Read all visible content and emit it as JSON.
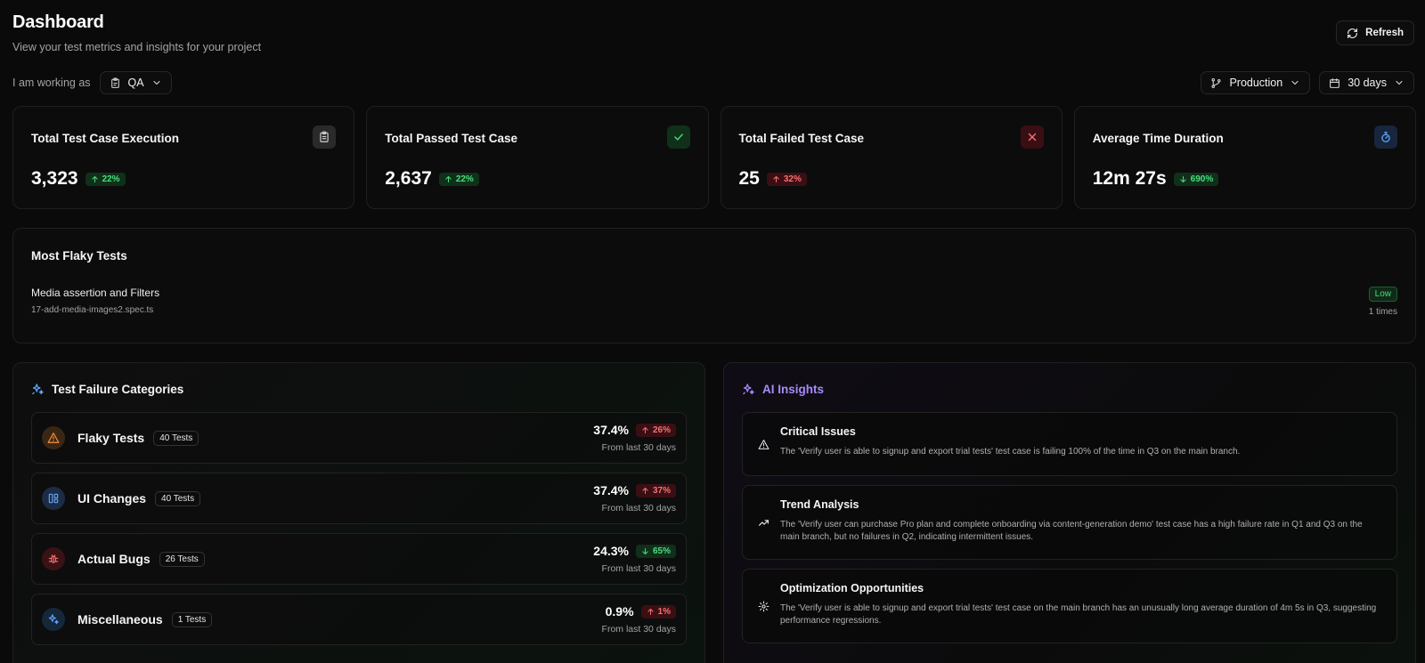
{
  "header": {
    "title": "Dashboard",
    "subtitle": "View your test metrics and insights for your project",
    "refresh_label": "Refresh"
  },
  "role": {
    "label": "I am working as",
    "value": "QA"
  },
  "filters": {
    "environment": "Production",
    "range": "30 days"
  },
  "stats": [
    {
      "title": "Total Test Case Execution",
      "value": "3,323",
      "trend": "22%",
      "direction": "up",
      "tone": "green",
      "icon": "clipboard-icon"
    },
    {
      "title": "Total Passed Test Case",
      "value": "2,637",
      "trend": "22%",
      "direction": "up",
      "tone": "green",
      "icon": "check-icon"
    },
    {
      "title": "Total Failed Test Case",
      "value": "25",
      "trend": "32%",
      "direction": "up",
      "tone": "red",
      "icon": "x-icon"
    },
    {
      "title": "Average Time Duration",
      "value": "12m 27s",
      "trend": "690%",
      "direction": "down",
      "tone": "green",
      "icon": "timer-icon"
    }
  ],
  "flaky": {
    "title": "Most Flaky Tests",
    "items": [
      {
        "name": "Media assertion and Filters",
        "file": "17-add-media-images2.spec.ts",
        "level": "Low",
        "count": "1 times"
      }
    ]
  },
  "failure_categories": {
    "title": "Test Failure Categories",
    "items": [
      {
        "name": "Flaky Tests",
        "count": "40 Tests",
        "pct": "37.4%",
        "trend": "26%",
        "direction": "up",
        "tone": "red",
        "period": "From last 30 days",
        "icon": "warning-icon"
      },
      {
        "name": "UI Changes",
        "count": "40 Tests",
        "pct": "37.4%",
        "trend": "37%",
        "direction": "up",
        "tone": "red",
        "period": "From last 30 days",
        "icon": "layout-icon"
      },
      {
        "name": "Actual Bugs",
        "count": "26 Tests",
        "pct": "24.3%",
        "trend": "65%",
        "direction": "down",
        "tone": "green",
        "period": "From last 30 days",
        "icon": "bug-icon"
      },
      {
        "name": "Miscellaneous",
        "count": "1 Tests",
        "pct": "0.9%",
        "trend": "1%",
        "direction": "up",
        "tone": "red",
        "period": "From last 30 days",
        "icon": "sparkles-icon"
      }
    ]
  },
  "ai_insights": {
    "title": "AI Insights",
    "items": [
      {
        "title": "Critical Issues",
        "text": "The 'Verify user is able to signup and export trial tests' test case is failing 100% of the time in Q3 on the main branch.",
        "icon": "warning-icon"
      },
      {
        "title": "Trend Analysis",
        "text": "The 'Verify user can purchase Pro plan and complete onboarding via content-generation demo' test case has a high failure rate in Q1 and Q3 on the main branch, but no failures in Q2, indicating intermittent issues.",
        "icon": "trending-up-icon"
      },
      {
        "title": "Optimization Opportunities",
        "text": "The 'Verify user is able to signup and export trial tests' test case on the main branch has an unusually long average duration of 4m 5s in Q3, suggesting performance regressions.",
        "icon": "gear-icon"
      }
    ]
  },
  "colors": {
    "background": "#0a0a0a",
    "accent_purple": "#a78bfa",
    "success": "#4ade80",
    "danger": "#f87171",
    "info": "#60a5fa",
    "warning": "#fb923c"
  }
}
